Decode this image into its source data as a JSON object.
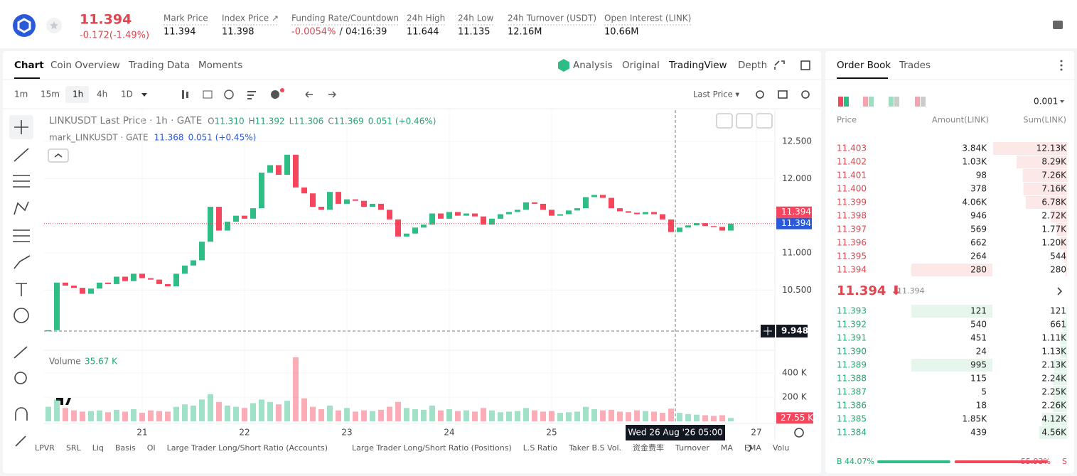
{
  "header": {
    "symbol_price": "11.394",
    "change": "-0.172(-1.49%)",
    "fields": [
      {
        "label": "Mark Price",
        "value": "11.394"
      },
      {
        "label": "Index Price ↗",
        "value": "11.398"
      },
      {
        "label": "Funding Rate/Countdown",
        "value": "-0.0054%",
        "extra": "/ 04:16:39"
      },
      {
        "label": "24h High",
        "value": "11.644"
      },
      {
        "label": "24h Low",
        "value": "11.135"
      },
      {
        "label": "24h Turnover (USDT)",
        "value": "12.16M"
      },
      {
        "label": "Open Interest (LINK)",
        "value": "10.66M"
      }
    ]
  },
  "tabs": [
    "Chart",
    "Coin Overview",
    "Trading Data",
    "Moments"
  ],
  "views": [
    "Analysis",
    "Original",
    "TradingView",
    "Depth"
  ],
  "intervals": [
    "1m",
    "15m",
    "1h",
    "4h",
    "1D"
  ],
  "price_source": "Last Price ▾",
  "legend": {
    "title": "LINKUSDT Last Price · 1h · GATE",
    "ohlc": [
      {
        "key": "O",
        "value": "11.310"
      },
      {
        "key": "H",
        "value": "11.392"
      },
      {
        "key": "L",
        "value": "11.306"
      },
      {
        "key": "C",
        "value": "11.369"
      }
    ],
    "change": "0.051 (+0.46%)",
    "mark_title": "mark_LINKUSDT · GATE",
    "mark_value": "11.368",
    "mark_change": "0.051 (+0.45%)"
  },
  "chart_data": {
    "type": "candlestick",
    "closes": [
      9.96,
      10.6,
      10.56,
      10.53,
      10.45,
      10.52,
      10.6,
      10.58,
      10.68,
      10.62,
      10.72,
      10.66,
      10.64,
      10.58,
      10.55,
      10.72,
      10.83,
      10.9,
      11.15,
      11.62,
      11.3,
      11.42,
      11.5,
      11.46,
      11.6,
      12.08,
      12.18,
      12.05,
      12.32,
      11.88,
      11.8,
      11.62,
      11.58,
      11.82,
      11.66,
      11.72,
      11.7,
      11.62,
      11.66,
      11.58,
      11.45,
      11.22,
      11.26,
      11.34,
      11.38,
      11.53,
      11.46,
      11.55,
      11.5,
      11.53,
      11.49,
      11.38,
      11.46,
      11.52,
      11.55,
      11.58,
      11.68,
      11.66,
      11.58,
      11.5,
      11.52,
      11.57,
      11.6,
      11.75,
      11.78,
      11.74,
      11.6,
      11.56,
      11.54,
      11.52,
      11.55,
      11.52,
      11.45,
      11.28,
      11.34,
      11.37,
      11.4,
      11.36,
      11.35,
      11.3,
      11.394
    ],
    "ylim": [
      9.7,
      12.92
    ],
    "yticks": [
      {
        "value": 12.5,
        "label": "12.500"
      },
      {
        "value": 12,
        "label": "12.000"
      },
      {
        "value": 11,
        "label": "11.000"
      },
      {
        "value": 10.5,
        "label": "10.500"
      }
    ],
    "last_price": {
      "value": 11.394,
      "label": "11.394"
    },
    "mark_price": {
      "value": 11.394,
      "label": "11.394"
    },
    "crosshair_price": {
      "value": 9.948,
      "label": "9.948"
    },
    "crosshair_time": "Wed 26 Aug '26  05:00",
    "xticks": [
      "21",
      "22",
      "23",
      "24",
      "25",
      "27"
    ],
    "volume": {
      "name": "Volume",
      "readout": "35.67 K",
      "current_label": "27.55 K",
      "ylim": [
        0,
        576000
      ],
      "yticks": [
        {
          "value": 400000,
          "label": "400 K"
        },
        {
          "value": 200000,
          "label": "200 K"
        }
      ],
      "values": [
        120000,
        180000,
        110000,
        90000,
        80000,
        85000,
        90000,
        75000,
        95000,
        80000,
        100000,
        70000,
        90000,
        85000,
        80000,
        120000,
        140000,
        130000,
        180000,
        225000,
        160000,
        130000,
        120000,
        110000,
        150000,
        180000,
        160000,
        140000,
        170000,
        530000,
        190000,
        120000,
        100000,
        130000,
        90000,
        110000,
        80000,
        90000,
        85000,
        95000,
        120000,
        160000,
        110000,
        100000,
        95000,
        130000,
        90000,
        100000,
        85000,
        90000,
        80000,
        110000,
        90000,
        75000,
        80000,
        85000,
        110000,
        90000,
        80000,
        85000,
        70000,
        75000,
        80000,
        120000,
        100000,
        90000,
        95000,
        80000,
        75000,
        90000,
        85000,
        80000,
        70000,
        105000,
        70000,
        60000,
        55000,
        50000,
        45000,
        50000,
        27550
      ]
    },
    "up_color": "#2ebd85",
    "down_color": "#f6465d"
  },
  "indicators": [
    "LPVR",
    "SRL",
    "Liq",
    "Basis",
    "OI",
    "Large Trader Long/Short Ratio (Accounts)",
    "Large Trader Long/Short Ratio (Positions)",
    "L.S Ratio",
    "Taker B.S Vol.",
    "资金费率",
    "Turnover",
    "MA",
    "EMA",
    "Volu"
  ],
  "order_book": {
    "tabs": [
      "Order Book",
      "Trades"
    ],
    "precision": "0.001",
    "columns": [
      "Price",
      "Amount(LINK)",
      "Sum(LINK)"
    ],
    "asks": [
      {
        "price": "11.403",
        "amount": "3.84K",
        "sum": {
          "value": 12130,
          "label": "12.13K"
        }
      },
      {
        "price": "11.402",
        "amount": "1.03K",
        "sum": {
          "value": 8290,
          "label": "8.29K"
        }
      },
      {
        "price": "11.401",
        "amount": "98",
        "sum": {
          "value": 7260,
          "label": "7.26K"
        }
      },
      {
        "price": "11.400",
        "amount": "378",
        "sum": {
          "value": 7160,
          "label": "7.16K"
        }
      },
      {
        "price": "11.399",
        "amount": "4.06K",
        "sum": {
          "value": 6780,
          "label": "6.78K"
        }
      },
      {
        "price": "11.398",
        "amount": "946",
        "sum": {
          "value": 2720,
          "label": "2.72K"
        }
      },
      {
        "price": "11.397",
        "amount": "569",
        "sum": {
          "value": 1770,
          "label": "1.77K"
        }
      },
      {
        "price": "11.396",
        "amount": "662",
        "sum": {
          "value": 1200,
          "label": "1.20K"
        }
      },
      {
        "price": "11.395",
        "amount": "264",
        "sum": 544
      },
      {
        "price": "11.394",
        "amount": "280",
        "sum": 280
      }
    ],
    "mid_price": "11.394 ⬇",
    "mid_mark": "11.394",
    "bids": [
      {
        "price": "11.393",
        "amount": "121",
        "sum": 121
      },
      {
        "price": "11.392",
        "amount": "540",
        "sum": 661
      },
      {
        "price": "11.391",
        "amount": "451",
        "sum": {
          "value": 1110,
          "label": "1.11K"
        }
      },
      {
        "price": "11.390",
        "amount": "24",
        "sum": {
          "value": 1130,
          "label": "1.13K"
        }
      },
      {
        "price": "11.389",
        "amount": "995",
        "sum": {
          "value": 2130,
          "label": "2.13K"
        }
      },
      {
        "price": "11.388",
        "amount": "115",
        "sum": {
          "value": 2240,
          "label": "2.24K"
        }
      },
      {
        "price": "11.387",
        "amount": "5",
        "sum": {
          "value": 2250,
          "label": "2.25K"
        }
      },
      {
        "price": "11.386",
        "amount": "18",
        "sum": {
          "value": 2260,
          "label": "2.26K"
        }
      },
      {
        "price": "11.385",
        "amount": "1.85K",
        "sum": {
          "value": 4120,
          "label": "4.12K"
        }
      },
      {
        "price": "11.384",
        "amount": "439",
        "sum": {
          "value": 4560,
          "label": "4.56K"
        }
      }
    ],
    "buy": {
      "key": "B",
      "pct": {
        "value": 44.07,
        "label": "44.07%"
      }
    },
    "sell": {
      "key": "S",
      "pct": {
        "value": 55.93,
        "label": "55.93%"
      }
    }
  }
}
